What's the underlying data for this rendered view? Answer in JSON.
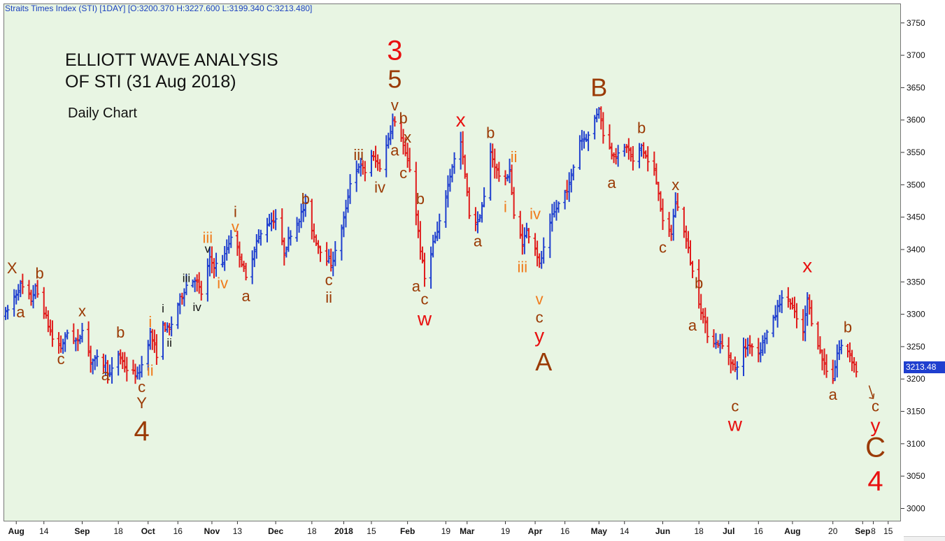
{
  "header": {
    "instrument": "Straits Times Index (STI) [1DAY] [O:3200.370 H:3227.600 L:3199.340 C:3213.480]"
  },
  "annotations": {
    "title_line1": "ELLIOTT WAVE ANALYSIS",
    "title_line2": "OF STI (31 Aug 2018)",
    "subtitle": "Daily Chart"
  },
  "last_price_tag": "3213.48",
  "colors": {
    "background": "#e8f5e3",
    "up_bar": "#1f3fcf",
    "down_bar": "#e01b1b",
    "label_red": "#e81010",
    "label_brown": "#9a3a05",
    "label_orange": "#f07a1a",
    "label_black": "#111111",
    "header_text": "#1a3fbf"
  },
  "chart_data": {
    "type": "ohlc",
    "title": "Straits Times Index (STI) [1DAY]",
    "ylim": [
      2980,
      3780
    ],
    "yticks": [
      3000,
      3050,
      3100,
      3150,
      3200,
      3250,
      3300,
      3350,
      3400,
      3450,
      3500,
      3550,
      3600,
      3650,
      3700,
      3750
    ],
    "grid": false,
    "xlim": [
      "2017-07-26",
      "2018-09-21"
    ],
    "xticks": [
      {
        "label": "Aug",
        "date": "2017-08-01",
        "bold": true
      },
      {
        "label": "14",
        "date": "2017-08-14",
        "bold": false
      },
      {
        "label": "Sep",
        "date": "2017-09-01",
        "bold": true
      },
      {
        "label": "18",
        "date": "2017-09-18",
        "bold": false
      },
      {
        "label": "Oct",
        "date": "2017-10-02",
        "bold": true
      },
      {
        "label": "16",
        "date": "2017-10-16",
        "bold": false
      },
      {
        "label": "Nov",
        "date": "2017-11-01",
        "bold": true
      },
      {
        "label": "13",
        "date": "2017-11-13",
        "bold": false
      },
      {
        "label": "Dec",
        "date": "2017-12-01",
        "bold": true
      },
      {
        "label": "18",
        "date": "2017-12-18",
        "bold": false
      },
      {
        "label": "2018",
        "date": "2018-01-02",
        "bold": true
      },
      {
        "label": "15",
        "date": "2018-01-15",
        "bold": false
      },
      {
        "label": "Feb",
        "date": "2018-02-01",
        "bold": true
      },
      {
        "label": "19",
        "date": "2018-02-19",
        "bold": false
      },
      {
        "label": "Mar",
        "date": "2018-03-01",
        "bold": true
      },
      {
        "label": "19",
        "date": "2018-03-19",
        "bold": false
      },
      {
        "label": "Apr",
        "date": "2018-04-02",
        "bold": true
      },
      {
        "label": "16",
        "date": "2018-04-16",
        "bold": false
      },
      {
        "label": "May",
        "date": "2018-05-02",
        "bold": true
      },
      {
        "label": "14",
        "date": "2018-05-14",
        "bold": false
      },
      {
        "label": "Jun",
        "date": "2018-06-01",
        "bold": true
      },
      {
        "label": "18",
        "date": "2018-06-18",
        "bold": false
      },
      {
        "label": "Jul",
        "date": "2018-07-02",
        "bold": true
      },
      {
        "label": "16",
        "date": "2018-07-16",
        "bold": false
      },
      {
        "label": "Aug",
        "date": "2018-08-01",
        "bold": true
      },
      {
        "label": "20",
        "date": "2018-08-20",
        "bold": false
      },
      {
        "label": "Sep",
        "date": "2018-09-03",
        "bold": true
      },
      {
        "label": "8",
        "date": "2018-09-08",
        "bold": false
      },
      {
        "label": "15",
        "date": "2018-09-15",
        "bold": false
      }
    ],
    "price_path": [
      [
        "2017-07-27",
        3300
      ],
      [
        "2017-08-03",
        3345
      ],
      [
        "2017-08-08",
        3322
      ],
      [
        "2017-08-10",
        3340
      ],
      [
        "2017-08-14",
        3305
      ],
      [
        "2017-08-18",
        3262
      ],
      [
        "2017-08-22",
        3248
      ],
      [
        "2017-08-25",
        3272
      ],
      [
        "2017-08-30",
        3255
      ],
      [
        "2017-09-01",
        3280
      ],
      [
        "2017-09-05",
        3228
      ],
      [
        "2017-09-08",
        3230
      ],
      [
        "2017-09-12",
        3222
      ],
      [
        "2017-09-14",
        3205
      ],
      [
        "2017-09-18",
        3238
      ],
      [
        "2017-09-22",
        3215
      ],
      [
        "2017-09-27",
        3205
      ],
      [
        "2017-09-29",
        3222
      ],
      [
        "2017-10-03",
        3270
      ],
      [
        "2017-10-06",
        3238
      ],
      [
        "2017-10-09",
        3282
      ],
      [
        "2017-10-12",
        3275
      ],
      [
        "2017-10-16",
        3315
      ],
      [
        "2017-10-20",
        3345
      ],
      [
        "2017-10-24",
        3355
      ],
      [
        "2017-10-27",
        3332
      ],
      [
        "2017-10-31",
        3385
      ],
      [
        "2017-11-02",
        3375
      ],
      [
        "2017-11-06",
        3380
      ],
      [
        "2017-11-10",
        3422
      ],
      [
        "2017-11-14",
        3392
      ],
      [
        "2017-11-17",
        3355
      ],
      [
        "2017-11-22",
        3412
      ],
      [
        "2017-11-27",
        3440
      ],
      [
        "2017-12-01",
        3448
      ],
      [
        "2017-12-05",
        3395
      ],
      [
        "2017-12-08",
        3425
      ],
      [
        "2017-12-12",
        3448
      ],
      [
        "2017-12-15",
        3468
      ],
      [
        "2017-12-19",
        3420
      ],
      [
        "2017-12-22",
        3400
      ],
      [
        "2017-12-27",
        3378
      ],
      [
        "2017-12-29",
        3395
      ],
      [
        "2018-01-03",
        3460
      ],
      [
        "2018-01-05",
        3505
      ],
      [
        "2018-01-09",
        3530
      ],
      [
        "2018-01-12",
        3520
      ],
      [
        "2018-01-15",
        3545
      ],
      [
        "2018-01-19",
        3528
      ],
      [
        "2018-01-22",
        3560
      ],
      [
        "2018-01-25",
        3600
      ],
      [
        "2018-01-29",
        3575
      ],
      [
        "2018-01-31",
        3545
      ],
      [
        "2018-02-02",
        3525
      ],
      [
        "2018-02-05",
        3455
      ],
      [
        "2018-02-07",
        3400
      ],
      [
        "2018-02-09",
        3355
      ],
      [
        "2018-02-13",
        3410
      ],
      [
        "2018-02-15",
        3425
      ],
      [
        "2018-02-19",
        3485
      ],
      [
        "2018-02-22",
        3530
      ],
      [
        "2018-02-26",
        3565
      ],
      [
        "2018-02-28",
        3515
      ],
      [
        "2018-03-02",
        3455
      ],
      [
        "2018-03-06",
        3440
      ],
      [
        "2018-03-09",
        3480
      ],
      [
        "2018-03-12",
        3550
      ],
      [
        "2018-03-14",
        3530
      ],
      [
        "2018-03-16",
        3515
      ],
      [
        "2018-03-19",
        3505
      ],
      [
        "2018-03-21",
        3525
      ],
      [
        "2018-03-23",
        3450
      ],
      [
        "2018-03-27",
        3410
      ],
      [
        "2018-03-29",
        3430
      ],
      [
        "2018-04-02",
        3405
      ],
      [
        "2018-04-04",
        3375
      ],
      [
        "2018-04-06",
        3400
      ],
      [
        "2018-04-10",
        3450
      ],
      [
        "2018-04-13",
        3470
      ],
      [
        "2018-04-18",
        3500
      ],
      [
        "2018-04-23",
        3570
      ],
      [
        "2018-04-27",
        3575
      ],
      [
        "2018-05-02",
        3620
      ],
      [
        "2018-05-04",
        3580
      ],
      [
        "2018-05-08",
        3550
      ],
      [
        "2018-05-11",
        3545
      ],
      [
        "2018-05-15",
        3560
      ],
      [
        "2018-05-18",
        3535
      ],
      [
        "2018-05-22",
        3560
      ],
      [
        "2018-05-25",
        3535
      ],
      [
        "2018-05-28",
        3520
      ],
      [
        "2018-05-30",
        3490
      ],
      [
        "2018-06-01",
        3440
      ],
      [
        "2018-06-05",
        3425
      ],
      [
        "2018-06-07",
        3475
      ],
      [
        "2018-06-11",
        3430
      ],
      [
        "2018-06-13",
        3400
      ],
      [
        "2018-06-15",
        3365
      ],
      [
        "2018-06-18",
        3320
      ],
      [
        "2018-06-20",
        3295
      ],
      [
        "2018-06-22",
        3270
      ],
      [
        "2018-06-26",
        3255
      ],
      [
        "2018-06-28",
        3255
      ],
      [
        "2018-07-02",
        3235
      ],
      [
        "2018-07-05",
        3215
      ],
      [
        "2018-07-09",
        3245
      ],
      [
        "2018-07-12",
        3255
      ],
      [
        "2018-07-16",
        3240
      ],
      [
        "2018-07-19",
        3265
      ],
      [
        "2018-07-23",
        3290
      ],
      [
        "2018-07-26",
        3320
      ],
      [
        "2018-07-30",
        3325
      ],
      [
        "2018-08-02",
        3300
      ],
      [
        "2018-08-06",
        3270
      ],
      [
        "2018-08-08",
        3325
      ],
      [
        "2018-08-10",
        3290
      ],
      [
        "2018-08-13",
        3255
      ],
      [
        "2018-08-15",
        3230
      ],
      [
        "2018-08-17",
        3215
      ],
      [
        "2018-08-20",
        3200
      ],
      [
        "2018-08-22",
        3240
      ],
      [
        "2018-08-24",
        3250
      ],
      [
        "2018-08-27",
        3245
      ],
      [
        "2018-08-29",
        3230
      ],
      [
        "2018-08-31",
        3213
      ]
    ],
    "forecast_arrow": {
      "from": [
        "2018-09-06",
        3190
      ],
      "to": [
        "2018-09-08",
        3170
      ]
    },
    "wave_labels": [
      {
        "text": "X",
        "date": "2017-07-30",
        "price": 3363,
        "color": "brown",
        "size": 22
      },
      {
        "text": "a",
        "date": "2017-08-03",
        "price": 3295,
        "color": "brown",
        "size": 22
      },
      {
        "text": "b",
        "date": "2017-08-12",
        "price": 3355,
        "color": "brown",
        "size": 22
      },
      {
        "text": "c",
        "date": "2017-08-22",
        "price": 3223,
        "color": "brown",
        "size": 22
      },
      {
        "text": "x",
        "date": "2017-09-01",
        "price": 3297,
        "color": "brown",
        "size": 22
      },
      {
        "text": "a",
        "date": "2017-09-12",
        "price": 3198,
        "color": "brown",
        "size": 22
      },
      {
        "text": "b",
        "date": "2017-09-19",
        "price": 3264,
        "color": "brown",
        "size": 22
      },
      {
        "text": "c",
        "date": "2017-09-29",
        "price": 3180,
        "color": "brown",
        "size": 22
      },
      {
        "text": "Y",
        "date": "2017-09-29",
        "price": 3155,
        "color": "brown",
        "size": 22
      },
      {
        "text": "4",
        "date": "2017-09-29",
        "price": 3105,
        "color": "brown",
        "size": 40
      },
      {
        "text": "i",
        "date": "2017-10-03",
        "price": 3280,
        "color": "orange",
        "size": 22
      },
      {
        "text": "ii",
        "date": "2017-10-03",
        "price": 3205,
        "color": "orange",
        "size": 22
      },
      {
        "text": "i",
        "date": "2017-10-09",
        "price": 3303,
        "color": "black",
        "size": 17
      },
      {
        "text": "ii",
        "date": "2017-10-12",
        "price": 3250,
        "color": "black",
        "size": 17
      },
      {
        "text": "iii",
        "date": "2017-10-20",
        "price": 3350,
        "color": "black",
        "size": 17
      },
      {
        "text": "iv",
        "date": "2017-10-25",
        "price": 3305,
        "color": "black",
        "size": 17
      },
      {
        "text": "v",
        "date": "2017-10-30",
        "price": 3395,
        "color": "black",
        "size": 17
      },
      {
        "text": "iii",
        "date": "2017-10-30",
        "price": 3410,
        "color": "orange",
        "size": 22
      },
      {
        "text": "iv",
        "date": "2017-11-06",
        "price": 3340,
        "color": "orange",
        "size": 22
      },
      {
        "text": "v",
        "date": "2017-11-12",
        "price": 3427,
        "color": "orange",
        "size": 22
      },
      {
        "text": "i",
        "date": "2017-11-12",
        "price": 3450,
        "color": "brown",
        "size": 22
      },
      {
        "text": "a",
        "date": "2017-11-17",
        "price": 3320,
        "color": "brown",
        "size": 22
      },
      {
        "text": "b",
        "date": "2017-12-15",
        "price": 3470,
        "color": "brown",
        "size": 22
      },
      {
        "text": "c",
        "date": "2017-12-26",
        "price": 3345,
        "color": "brown",
        "size": 22
      },
      {
        "text": "ii",
        "date": "2017-12-26",
        "price": 3318,
        "color": "brown",
        "size": 22
      },
      {
        "text": "iii",
        "date": "2018-01-09",
        "price": 3538,
        "color": "brown",
        "size": 22
      },
      {
        "text": "iv",
        "date": "2018-01-19",
        "price": 3488,
        "color": "brown",
        "size": 22
      },
      {
        "text": "3",
        "date": "2018-01-26",
        "price": 3693,
        "color": "red",
        "size": 40
      },
      {
        "text": "5",
        "date": "2018-01-26",
        "price": 3650,
        "color": "brown",
        "size": 36
      },
      {
        "text": "v",
        "date": "2018-01-26",
        "price": 3615,
        "color": "brown",
        "size": 22
      },
      {
        "text": "b",
        "date": "2018-01-30",
        "price": 3595,
        "color": "brown",
        "size": 22
      },
      {
        "text": "a",
        "date": "2018-01-26",
        "price": 3545,
        "color": "brown",
        "size": 22
      },
      {
        "text": "x",
        "date": "2018-02-01",
        "price": 3565,
        "color": "brown",
        "size": 22
      },
      {
        "text": "c",
        "date": "2018-01-30",
        "price": 3510,
        "color": "brown",
        "size": 22
      },
      {
        "text": "b",
        "date": "2018-02-07",
        "price": 3470,
        "color": "brown",
        "size": 22
      },
      {
        "text": "a",
        "date": "2018-02-05",
        "price": 3335,
        "color": "brown",
        "size": 22
      },
      {
        "text": "c",
        "date": "2018-02-09",
        "price": 3315,
        "color": "brown",
        "size": 22
      },
      {
        "text": "w",
        "date": "2018-02-09",
        "price": 3283,
        "color": "red",
        "size": 28
      },
      {
        "text": "x",
        "date": "2018-02-26",
        "price": 3590,
        "color": "red",
        "size": 28
      },
      {
        "text": "a",
        "date": "2018-03-06",
        "price": 3405,
        "color": "brown",
        "size": 22
      },
      {
        "text": "b",
        "date": "2018-03-12",
        "price": 3572,
        "color": "brown",
        "size": 22
      },
      {
        "text": "ii",
        "date": "2018-03-23",
        "price": 3535,
        "color": "orange",
        "size": 22
      },
      {
        "text": "i",
        "date": "2018-03-19",
        "price": 3458,
        "color": "orange",
        "size": 22
      },
      {
        "text": "iii",
        "date": "2018-03-27",
        "price": 3365,
        "color": "orange",
        "size": 22
      },
      {
        "text": "iv",
        "date": "2018-04-02",
        "price": 3447,
        "color": "orange",
        "size": 22
      },
      {
        "text": "v",
        "date": "2018-04-04",
        "price": 3315,
        "color": "orange",
        "size": 22
      },
      {
        "text": "c",
        "date": "2018-04-04",
        "price": 3287,
        "color": "brown",
        "size": 22
      },
      {
        "text": "y",
        "date": "2018-04-04",
        "price": 3257,
        "color": "red",
        "size": 28
      },
      {
        "text": "A",
        "date": "2018-04-06",
        "price": 3213,
        "color": "brown",
        "size": 36
      },
      {
        "text": "B",
        "date": "2018-05-02",
        "price": 3637,
        "color": "brown",
        "size": 36
      },
      {
        "text": "a",
        "date": "2018-05-08",
        "price": 3495,
        "color": "brown",
        "size": 22
      },
      {
        "text": "b",
        "date": "2018-05-22",
        "price": 3580,
        "color": "brown",
        "size": 22
      },
      {
        "text": "c",
        "date": "2018-06-01",
        "price": 3395,
        "color": "brown",
        "size": 22
      },
      {
        "text": "x",
        "date": "2018-06-07",
        "price": 3492,
        "color": "brown",
        "size": 22
      },
      {
        "text": "b",
        "date": "2018-06-18",
        "price": 3340,
        "color": "brown",
        "size": 22
      },
      {
        "text": "a",
        "date": "2018-06-15",
        "price": 3275,
        "color": "brown",
        "size": 22
      },
      {
        "text": "c",
        "date": "2018-07-05",
        "price": 3150,
        "color": "brown",
        "size": 22
      },
      {
        "text": "w",
        "date": "2018-07-05",
        "price": 3120,
        "color": "red",
        "size": 28
      },
      {
        "text": "x",
        "date": "2018-08-08",
        "price": 3365,
        "color": "red",
        "size": 28
      },
      {
        "text": "a",
        "date": "2018-08-20",
        "price": 3168,
        "color": "brown",
        "size": 22
      },
      {
        "text": "b",
        "date": "2018-08-27",
        "price": 3272,
        "color": "brown",
        "size": 22
      },
      {
        "text": "c",
        "date": "2018-09-09",
        "price": 3150,
        "color": "brown",
        "size": 22
      },
      {
        "text": "y",
        "date": "2018-09-09",
        "price": 3118,
        "color": "red",
        "size": 28
      },
      {
        "text": "C",
        "date": "2018-09-09",
        "price": 3080,
        "color": "brown",
        "size": 40
      },
      {
        "text": "4",
        "date": "2018-09-09",
        "price": 3028,
        "color": "red",
        "size": 40
      }
    ]
  }
}
